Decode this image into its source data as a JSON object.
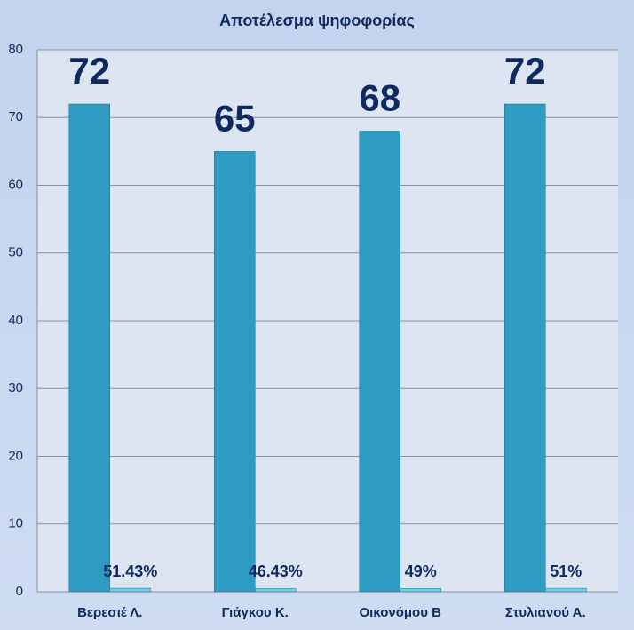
{
  "chart_data": {
    "type": "bar",
    "title": "Αποτέλεσμα ψηφοφορίας",
    "categories": [
      "Βερεσιέ Λ.",
      "Γιάγκου Κ.",
      "Οικονόμου Β",
      "Στυλιανού Α."
    ],
    "series": [
      {
        "color": "#2e9cc2",
        "values": [
          72,
          65,
          68,
          72
        ]
      },
      {
        "color": "#6fd0e4",
        "values": [
          0.5143,
          0.4643,
          0.49,
          0.51
        ],
        "value_labels": [
          "51.43%",
          "46.43%",
          "49%",
          "51%"
        ]
      }
    ],
    "ylim": [
      0,
      80
    ],
    "yticks": [
      0,
      10,
      20,
      30,
      40,
      50,
      60,
      70,
      80
    ],
    "grid": true
  }
}
